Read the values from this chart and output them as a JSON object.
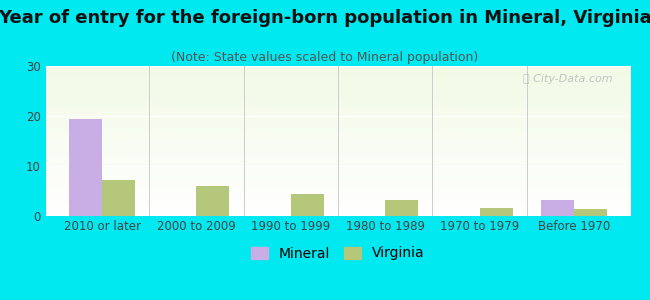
{
  "title": "Year of entry for the foreign-born population in Mineral, Virginia",
  "subtitle": "(Note: State values scaled to Mineral population)",
  "categories": [
    "2010 or later",
    "2000 to 2009",
    "1990 to 1999",
    "1980 to 1989",
    "1970 to 1979",
    "Before 1970"
  ],
  "mineral_values": [
    19.5,
    0,
    0,
    0,
    0,
    3.2
  ],
  "virginia_values": [
    7.2,
    6.0,
    4.4,
    3.3,
    1.7,
    1.4
  ],
  "mineral_color": "#c9aee5",
  "virginia_color": "#b5c77a",
  "background_color": "#00e8f0",
  "ylim": [
    0,
    30
  ],
  "yticks": [
    0,
    10,
    20,
    30
  ],
  "bar_width": 0.35,
  "title_fontsize": 13,
  "subtitle_fontsize": 9,
  "tick_fontsize": 8.5,
  "legend_fontsize": 10
}
